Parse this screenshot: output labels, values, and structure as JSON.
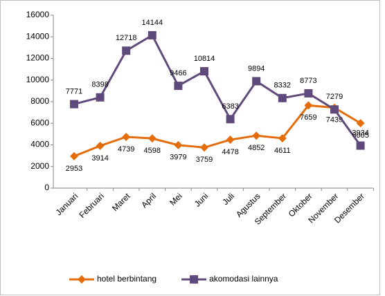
{
  "chart_data": {
    "type": "line",
    "categories": [
      "Januari",
      "Februari",
      "Maret",
      "April",
      "Mei",
      "Juni",
      "Juli",
      "Agustus",
      "September",
      "Oktober",
      "November",
      "Desember"
    ],
    "series": [
      {
        "name": "hotel berbintang",
        "color": "#e46c0a",
        "marker": "diamond",
        "values": [
          2953,
          3914,
          4739,
          4598,
          3979,
          3759,
          4478,
          4852,
          4611,
          7659,
          7439,
          6005
        ]
      },
      {
        "name": "akomodasi lainnya",
        "color": "#604a7b",
        "marker": "square",
        "values": [
          7771,
          8398,
          12718,
          14144,
          9466,
          10814,
          6383,
          9894,
          8332,
          8773,
          7279,
          3934
        ]
      }
    ],
    "ylim": [
      0,
      16000
    ],
    "yticks": [
      0,
      2000,
      4000,
      6000,
      8000,
      10000,
      12000,
      14000,
      16000
    ],
    "grid": false,
    "legend": "bottom"
  }
}
